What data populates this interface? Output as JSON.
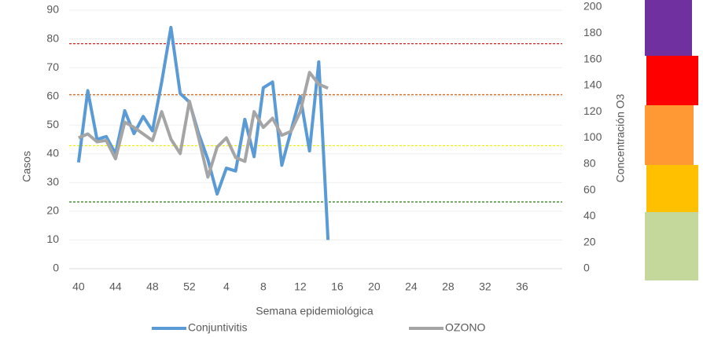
{
  "chart_data": {
    "type": "line",
    "x_label": "Semana epidemiológica",
    "y_label": "Casos",
    "y2_label": "Concentración O3",
    "categories": [
      40,
      null,
      null,
      null,
      44,
      null,
      null,
      null,
      48,
      null,
      null,
      null,
      52,
      null,
      null,
      null,
      4,
      null,
      null,
      null,
      8,
      null,
      null,
      null,
      12,
      null,
      null,
      null,
      16,
      null,
      null,
      null,
      20,
      null,
      null,
      null,
      24,
      null,
      null,
      null,
      28,
      null,
      null,
      null,
      32,
      null,
      null,
      null,
      36,
      null,
      null,
      null
    ],
    "series": [
      {
        "name": "Conjuntivitis",
        "color": "#5b9bd5",
        "values": [
          37,
          62,
          45,
          46,
          40,
          55,
          47,
          53,
          48,
          65,
          84,
          61,
          58,
          47,
          38,
          26,
          35,
          34,
          52,
          39,
          63,
          65,
          36,
          48,
          60,
          41,
          72,
          10,
          null,
          null,
          null,
          null,
          null,
          null,
          null,
          null,
          null,
          null,
          null,
          null,
          null,
          null,
          null,
          null,
          null,
          null,
          null,
          null,
          null,
          null,
          null,
          null
        ]
      },
      {
        "name": "OZONO",
        "color": "#a5a5a5",
        "axis": "y2",
        "values": [
          100,
          103,
          97,
          98,
          84,
          112,
          108,
          103,
          98,
          120,
          99,
          88,
          128,
          100,
          70,
          93,
          100,
          85,
          82,
          120,
          108,
          115,
          102,
          105,
          120,
          150,
          141,
          138,
          null,
          null,
          null,
          null,
          null,
          null,
          null,
          null,
          null,
          null,
          null,
          null,
          null,
          null,
          null,
          null,
          null,
          null,
          null,
          null,
          null,
          null,
          null,
          null
        ]
      }
    ],
    "thresholds": [
      {
        "value": 172,
        "color": "#e02020"
      },
      {
        "value": 133,
        "color": "#d9691e"
      },
      {
        "value": 94,
        "color": "#f0f000"
      },
      {
        "value": 51,
        "color": "#3a8a20"
      }
    ],
    "ylim": [
      0,
      90
    ],
    "yticks": [
      0,
      10,
      20,
      30,
      40,
      50,
      60,
      70,
      80,
      90
    ],
    "y2lim": [
      0,
      200
    ],
    "y2ticks": [
      0,
      20,
      40,
      60,
      80,
      100,
      120,
      140,
      160,
      180,
      200
    ],
    "grid": true
  }
}
